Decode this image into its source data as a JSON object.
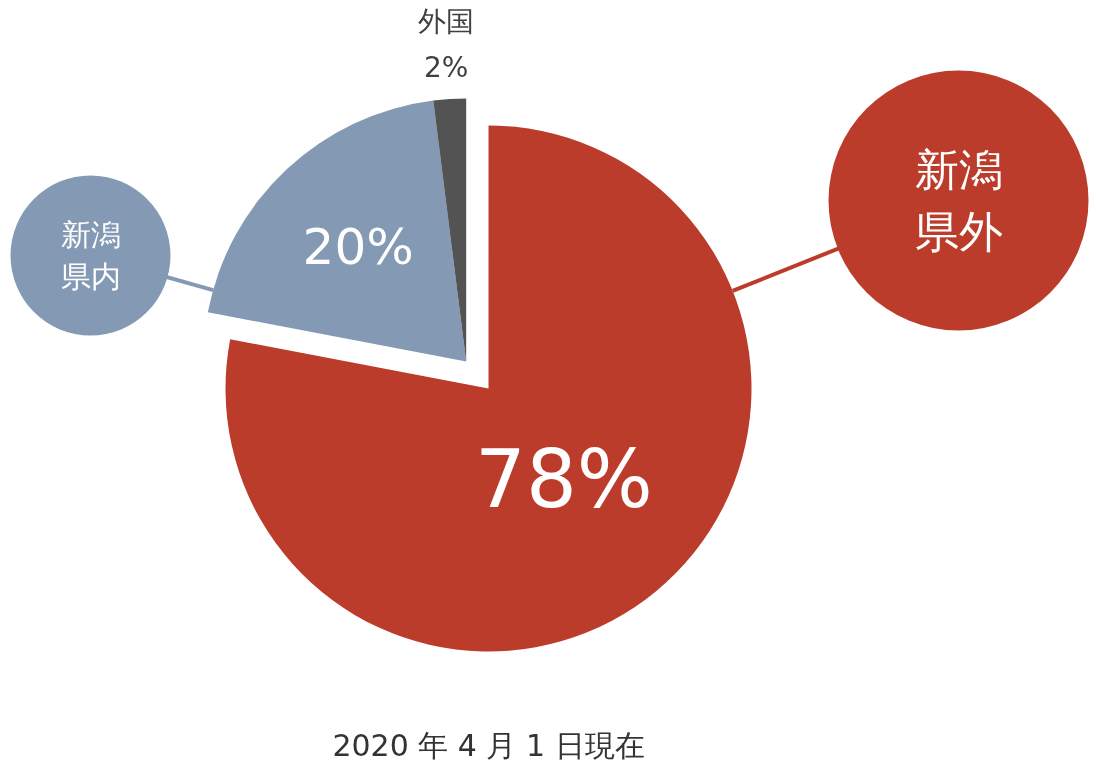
{
  "chart_data": {
    "type": "pie",
    "categories": [
      "新潟県外",
      "新潟県内",
      "外国"
    ],
    "values": [
      78,
      20,
      2
    ],
    "colors": [
      "#bc3c2b",
      "#8499b3",
      "#535353"
    ],
    "value_labels": [
      "78%",
      "20%",
      "2%"
    ],
    "annotations": [
      "2020 年 4 月 1 日現在"
    ]
  }
}
